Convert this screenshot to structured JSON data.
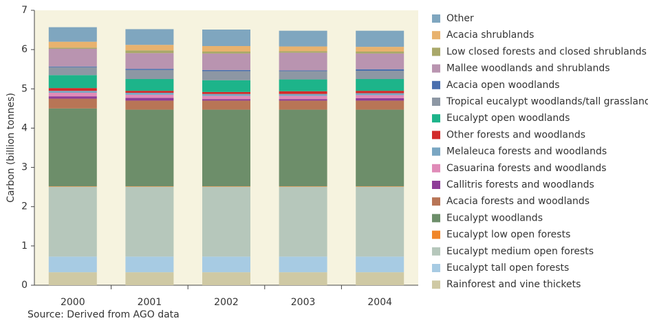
{
  "chart_data": {
    "type": "stacked_bar",
    "y_label": "Carbon (billion tonnes)",
    "source": "Source: Derived from AGO data",
    "categories": [
      "2000",
      "2001",
      "2002",
      "2003",
      "2004"
    ],
    "ylim": [
      0,
      7
    ],
    "yticks": [
      0,
      1,
      2,
      3,
      4,
      5,
      6,
      7
    ],
    "series": [
      {
        "name": "Rainforest and vine thickets",
        "color": "#cfc9a4",
        "values": [
          0.33,
          0.33,
          0.33,
          0.33,
          0.33
        ]
      },
      {
        "name": "Eucalypt tall open forests",
        "color": "#a7cbe3",
        "values": [
          0.4,
          0.4,
          0.4,
          0.4,
          0.4
        ]
      },
      {
        "name": "Eucalypt medium open forests",
        "color": "#b6c7bb",
        "values": [
          1.78,
          1.78,
          1.78,
          1.78,
          1.78
        ]
      },
      {
        "name": "Eucalypt low open forests",
        "color": "#f0862a",
        "values": [
          0.01,
          0.01,
          0.01,
          0.01,
          0.01
        ]
      },
      {
        "name": "Eucalypt woodlands",
        "color": "#6d8e6a",
        "values": [
          1.98,
          1.95,
          1.95,
          1.95,
          1.95
        ]
      },
      {
        "name": "Acacia forests and woodlands",
        "color": "#b87556",
        "values": [
          0.25,
          0.23,
          0.23,
          0.23,
          0.23
        ]
      },
      {
        "name": "Callitris forests and woodlands",
        "color": "#8e3d98",
        "values": [
          0.06,
          0.07,
          0.04,
          0.04,
          0.06
        ]
      },
      {
        "name": "Casuarina forests and woodlands",
        "color": "#e08bb8",
        "values": [
          0.09,
          0.08,
          0.08,
          0.08,
          0.08
        ]
      },
      {
        "name": "Melaleuca forests and woodlands",
        "color": "#7aa6c2",
        "values": [
          0.05,
          0.05,
          0.05,
          0.05,
          0.05
        ]
      },
      {
        "name": "Other forests and woodlands",
        "color": "#d22a2a",
        "values": [
          0.07,
          0.05,
          0.05,
          0.07,
          0.06
        ]
      },
      {
        "name": "Eucalypt open woodlands",
        "color": "#1db48a",
        "values": [
          0.33,
          0.3,
          0.3,
          0.3,
          0.3
        ]
      },
      {
        "name": "Tropical eucalypt woodlands/tall grasslands",
        "color": "#8d97a4",
        "values": [
          0.2,
          0.23,
          0.23,
          0.21,
          0.21
        ]
      },
      {
        "name": "Acacia open woodlands",
        "color": "#4a6fae",
        "values": [
          0.02,
          0.03,
          0.03,
          0.02,
          0.04
        ]
      },
      {
        "name": "Mallee woodlands and shrublands",
        "color": "#b994b0",
        "values": [
          0.45,
          0.4,
          0.42,
          0.45,
          0.4
        ]
      },
      {
        "name": "Low closed forests and closed shrublands",
        "color": "#a9a86a",
        "values": [
          0.03,
          0.07,
          0.05,
          0.04,
          0.05
        ]
      },
      {
        "name": "Acacia shrublands",
        "color": "#e8b26e",
        "values": [
          0.15,
          0.14,
          0.14,
          0.12,
          0.12
        ]
      },
      {
        "name": "Other",
        "color": "#7fa6bf",
        "values": [
          0.37,
          0.4,
          0.42,
          0.4,
          0.41
        ]
      }
    ]
  }
}
